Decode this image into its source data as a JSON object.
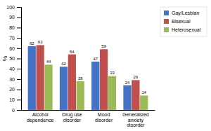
{
  "chart_data": {
    "type": "bar",
    "categories": [
      "Alcohol\ndependence",
      "Drug use\ndisorder",
      "Mood\ndisorder",
      "Generalized\nanxiety\ndisorder"
    ],
    "series": [
      {
        "name": "Gay/Lesbian",
        "color": "#4472C4",
        "values": [
          62,
          42,
          47,
          24
        ]
      },
      {
        "name": "Bisexual",
        "color": "#C0504D",
        "values": [
          63,
          54,
          59,
          29
        ]
      },
      {
        "name": "Heterosexual",
        "color": "#9BBB59",
        "values": [
          44,
          28,
          33,
          14
        ]
      }
    ],
    "ylabel": "%",
    "ylim": [
      0,
      100
    ],
    "yticks": [
      0,
      10,
      20,
      30,
      40,
      50,
      60,
      70,
      80,
      90,
      100
    ],
    "data_labels": true,
    "grid": false,
    "legend": "right"
  }
}
